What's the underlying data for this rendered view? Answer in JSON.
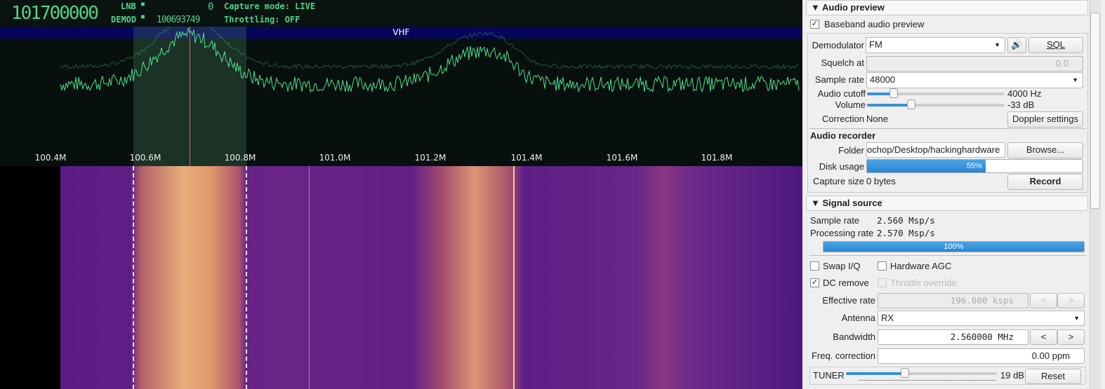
{
  "status": {
    "main_freq": "101700000",
    "lnb_label": "LNB",
    "demod_label": "DEMOD",
    "lnb_value": "0",
    "demod_value": "100693749",
    "capture_mode": "Capture mode: LIVE",
    "throttling": "Throttling: OFF"
  },
  "spectrum": {
    "band_label": "VHF",
    "ticks": [
      "100.4M",
      "100.6M",
      "100.8M",
      "101.0M",
      "101.2M",
      "101.4M",
      "101.6M",
      "101.8M"
    ],
    "trace_color": "#4fe08c"
  },
  "audio_preview": {
    "title": "Audio preview",
    "baseband_label": "Baseband audio preview",
    "baseband_checked": true,
    "demodulator_label": "Demodulator",
    "demodulator": "FM",
    "sql_label": "SQL",
    "squelch_label": "Squelch at",
    "squelch_value": "0.0",
    "sample_rate_label": "Sample rate",
    "sample_rate": "48000",
    "cutoff_label": "Audio cutoff",
    "cutoff_value": "4000 Hz",
    "cutoff_level": 0.2,
    "volume_label": "Volume",
    "volume_value": "-33 dB",
    "volume_level": 0.32,
    "correction_label": "Correction",
    "correction_value": "None",
    "doppler_label": "Doppler settings"
  },
  "audio_recorder": {
    "title": "Audio recorder",
    "folder_label": "Folder",
    "folder_value": "ochop/Desktop/hackinghardware",
    "browse_label": "Browse...",
    "disk_label": "Disk usage",
    "disk_percent": "55%",
    "capture_label": "Capture size",
    "capture_value": "0 bytes",
    "record_label": "Record"
  },
  "signal_source": {
    "title": "Signal source",
    "sample_rate_label": "Sample rate",
    "sample_rate": "2.560 Msp/s",
    "processing_label": "Processing rate",
    "processing_rate": "2.570 Msp/s",
    "progress": "100%",
    "swap_iq": "Swap I/Q",
    "hw_agc": "Hardware AGC",
    "dc_remove": "DC remove",
    "throttle_override": "Throttle override",
    "effective_rate_label": "Effective rate",
    "effective_rate": "196.000 ksps",
    "prev": "<",
    "next": ">",
    "antenna_label": "Antenna",
    "antenna": "RX",
    "bandwidth_label": "Bandwidth",
    "bandwidth": "2.560000 MHz",
    "freq_corr_label": "Freq. correction",
    "freq_corr": "0.00 ppm",
    "tuner_label": "TUNER",
    "tuner_value": "19 dB",
    "tuner_level": 0.39,
    "reset_label": "Reset"
  }
}
